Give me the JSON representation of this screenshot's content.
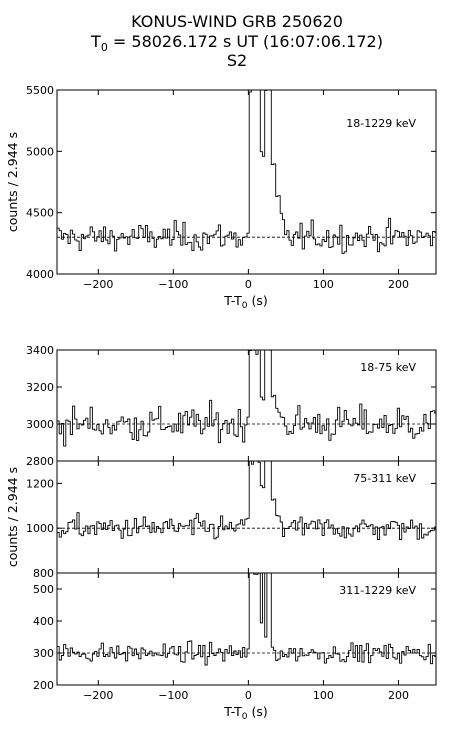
{
  "title": {
    "line1": "KONUS-WIND GRB 250620",
    "line2_prefix": "T",
    "line2_sub": "0",
    "line2_suffix": " = 58026.172 s UT (16:07:06.172)",
    "line3": "S2"
  },
  "chart_data": [
    {
      "type": "line",
      "panel": "top",
      "band_label": "18-1229 keV",
      "xlabel_prefix": "T-T",
      "xlabel_sub": "0",
      "xlabel_suffix": " (s)",
      "ylabel": "counts / 2.944 s",
      "xlim": [
        -255,
        250
      ],
      "ylim": [
        4000,
        5500
      ],
      "xticks": [
        -200,
        -100,
        0,
        100,
        200
      ],
      "yticks": [
        4000,
        4500,
        5000,
        5500
      ],
      "background": 4300,
      "bin_width": 2.944,
      "burst": [
        [
          -3,
          4330
        ],
        [
          0,
          5500
        ],
        [
          10,
          5500
        ],
        [
          15,
          4980
        ],
        [
          20,
          5500
        ],
        [
          30,
          4880
        ],
        [
          35,
          4620
        ],
        [
          40,
          4480
        ],
        [
          45,
          4420
        ],
        [
          48,
          4330
        ]
      ]
    },
    {
      "type": "line",
      "panel": "bottom-1",
      "band_label": "18-75 keV",
      "xlim": [
        -255,
        250
      ],
      "ylim": [
        2800,
        3400
      ],
      "yticks": [
        2800,
        3000,
        3200,
        3400
      ],
      "background": 3000,
      "burst": [
        [
          -3,
          3050
        ],
        [
          0,
          3400
        ],
        [
          10,
          3400
        ],
        [
          15,
          3130
        ],
        [
          20,
          3400
        ],
        [
          30,
          3150
        ],
        [
          35,
          3080
        ],
        [
          40,
          3040
        ],
        [
          45,
          3010
        ]
      ]
    },
    {
      "type": "line",
      "panel": "bottom-2",
      "band_label": "75-311 keV",
      "xlim": [
        -255,
        250
      ],
      "ylim": [
        800,
        1300
      ],
      "yticks": [
        800,
        1000,
        1200
      ],
      "background": 1000,
      "burst": [
        [
          -3,
          1050
        ],
        [
          0,
          1300
        ],
        [
          10,
          1300
        ],
        [
          15,
          1180
        ],
        [
          20,
          1300
        ],
        [
          30,
          1120
        ],
        [
          35,
          1060
        ],
        [
          40,
          1030
        ],
        [
          45,
          1010
        ]
      ]
    },
    {
      "type": "line",
      "panel": "bottom-3",
      "band_label": "311-1229 keV",
      "xlabel_prefix": "T-T",
      "xlabel_sub": "0",
      "xlabel_suffix": " (s)",
      "xlim": [
        -255,
        250
      ],
      "ylim": [
        200,
        550
      ],
      "xticks": [
        -200,
        -100,
        0,
        100,
        200
      ],
      "yticks": [
        200,
        300,
        400,
        500
      ],
      "background": 300,
      "burst": [
        [
          -3,
          310
        ],
        [
          0,
          550
        ],
        [
          8,
          550
        ],
        [
          13,
          390
        ],
        [
          16,
          550
        ],
        [
          20,
          350
        ],
        [
          24,
          550
        ],
        [
          28,
          320
        ],
        [
          32,
          300
        ]
      ]
    }
  ],
  "shared_ylabel": "counts / 2.944 s"
}
